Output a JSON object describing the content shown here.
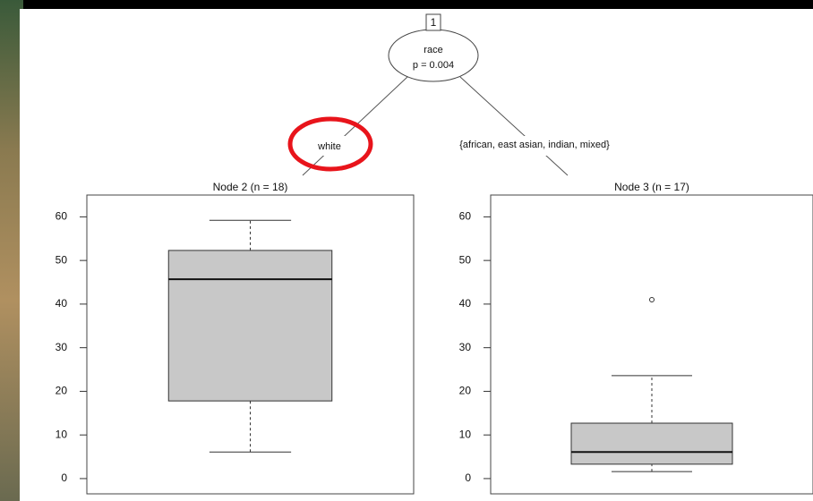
{
  "tree": {
    "node_id": "1",
    "variable": "race",
    "p_value": "p = 0.004",
    "edges": [
      "white",
      "{african, east asian, indian, mixed}"
    ]
  },
  "chart_data": [
    {
      "type": "box",
      "title": "Node 2 (n = 18)",
      "ylim": [
        -3.5,
        65
      ],
      "yticks": [
        0,
        10,
        20,
        30,
        40,
        50,
        60
      ],
      "box": {
        "min": 6.1,
        "q1": 17.8,
        "median": 45.7,
        "q3": 52.3,
        "max": 59.2
      },
      "color": "#c8c8c8"
    },
    {
      "type": "box",
      "title": "Node 3 (n = 17)",
      "ylim": [
        -3.5,
        65
      ],
      "yticks": [
        0,
        10,
        20,
        30,
        40,
        50,
        60
      ],
      "box": {
        "min": 1.6,
        "q1": 3.3,
        "median": 6.1,
        "q3": 12.7,
        "max": 23.6
      },
      "outliers": [
        41
      ],
      "color": "#c8c8c8"
    }
  ]
}
